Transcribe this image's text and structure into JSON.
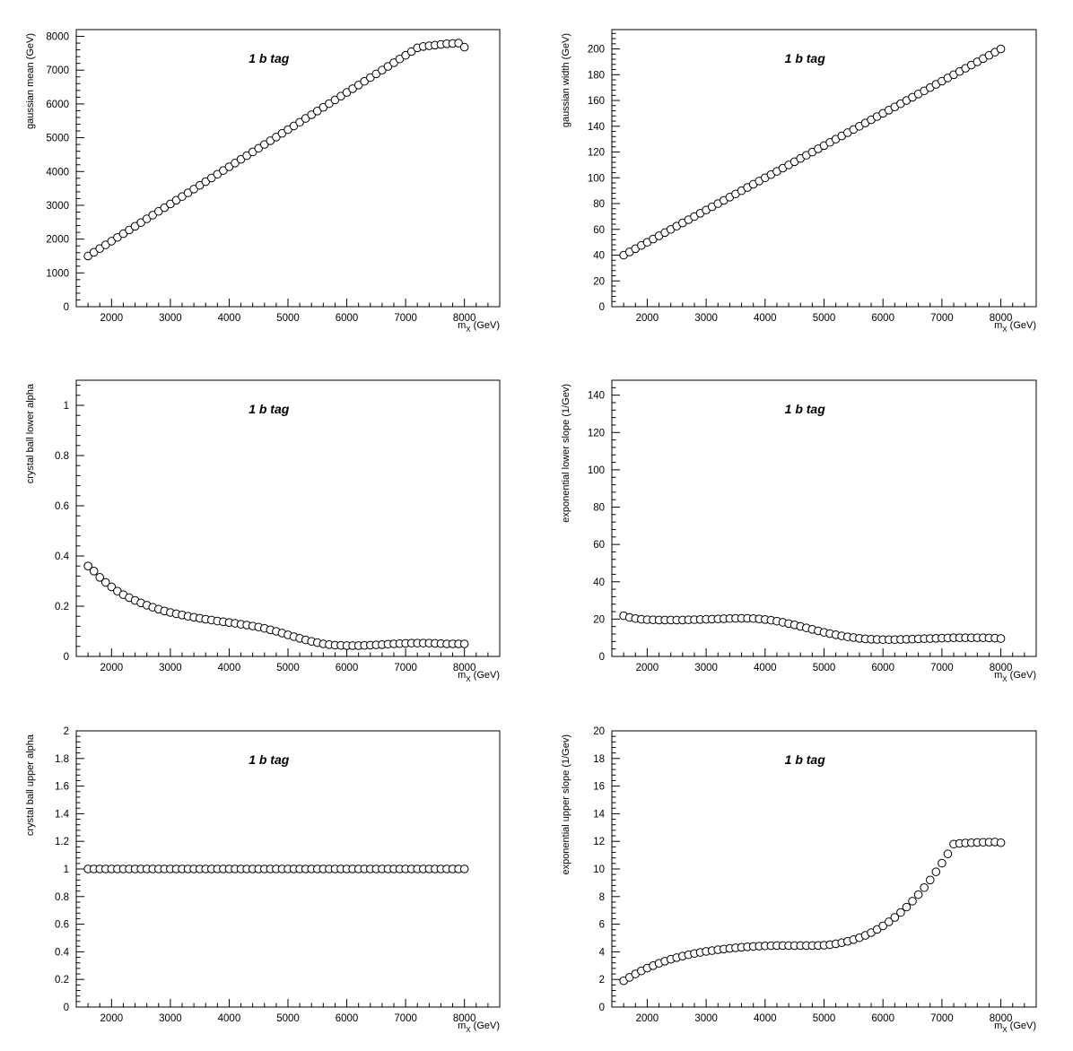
{
  "chart_data": [
    {
      "type": "scatter",
      "label": "1 b tag",
      "xlabel_main": "m",
      "xlabel_sub": "X",
      "xlabel_unit": "(GeV)",
      "ylabel": "gaussian mean (GeV)",
      "xlim": [
        1400,
        8600
      ],
      "ylim": [
        0,
        8200
      ],
      "xticks": [
        2000,
        3000,
        4000,
        5000,
        6000,
        7000,
        8000
      ],
      "yticks": [
        0,
        1000,
        2000,
        3000,
        4000,
        5000,
        6000,
        7000,
        8000
      ],
      "x_start": 1600,
      "x_step": 100,
      "y": [
        1500,
        1610,
        1720,
        1830,
        1940,
        2050,
        2160,
        2270,
        2380,
        2490,
        2600,
        2710,
        2820,
        2930,
        3040,
        3150,
        3260,
        3370,
        3480,
        3590,
        3700,
        3810,
        3920,
        4030,
        4140,
        4250,
        4360,
        4470,
        4580,
        4690,
        4800,
        4910,
        5020,
        5130,
        5240,
        5350,
        5460,
        5570,
        5680,
        5790,
        5900,
        6010,
        6120,
        6230,
        6340,
        6450,
        6560,
        6670,
        6780,
        6890,
        7000,
        7110,
        7220,
        7330,
        7440,
        7550,
        7660,
        7700,
        7720,
        7740,
        7760,
        7780,
        7790,
        7800,
        7680
      ]
    },
    {
      "type": "scatter",
      "label": "1 b tag",
      "xlabel_main": "m",
      "xlabel_sub": "X",
      "xlabel_unit": "(GeV)",
      "ylabel": "gaussian width (GeV)",
      "xlim": [
        1400,
        8600
      ],
      "ylim": [
        0,
        215
      ],
      "xticks": [
        2000,
        3000,
        4000,
        5000,
        6000,
        7000,
        8000
      ],
      "yticks": [
        0,
        20,
        40,
        60,
        80,
        100,
        120,
        140,
        160,
        180,
        200
      ],
      "x_start": 1600,
      "x_step": 100,
      "y": [
        40,
        42.5,
        45,
        47.5,
        50,
        52.5,
        55,
        57.5,
        60,
        62.5,
        65,
        67.5,
        70,
        72.5,
        75,
        77.5,
        80,
        82.5,
        85,
        87.5,
        90,
        92.5,
        95,
        97.5,
        100,
        102.5,
        105,
        107.5,
        110,
        112.5,
        115,
        117.5,
        120,
        122.5,
        125,
        127.5,
        130,
        132.5,
        135,
        137.5,
        140,
        142.5,
        145,
        147.5,
        150,
        152.5,
        155,
        157.5,
        160,
        162.5,
        165,
        167.5,
        170,
        172.5,
        175,
        177.5,
        180,
        182.5,
        185,
        187.5,
        190,
        192.5,
        195,
        197.5,
        200
      ]
    },
    {
      "type": "scatter",
      "label": "1 b tag",
      "xlabel_main": "m",
      "xlabel_sub": "X",
      "xlabel_unit": "(GeV)",
      "ylabel": "crystal ball lower alpha",
      "xlim": [
        1400,
        8600
      ],
      "ylim": [
        0,
        1.1
      ],
      "xticks": [
        2000,
        3000,
        4000,
        5000,
        6000,
        7000,
        8000
      ],
      "yticks": [
        0,
        0.2,
        0.4,
        0.6,
        0.8,
        1
      ],
      "x_start": 1600,
      "x_step": 100,
      "y": [
        0.36,
        0.34,
        0.315,
        0.295,
        0.277,
        0.26,
        0.246,
        0.234,
        0.223,
        0.213,
        0.204,
        0.196,
        0.188,
        0.181,
        0.175,
        0.17,
        0.165,
        0.16,
        0.156,
        0.152,
        0.148,
        0.145,
        0.141,
        0.138,
        0.135,
        0.132,
        0.128,
        0.125,
        0.121,
        0.117,
        0.112,
        0.106,
        0.1,
        0.093,
        0.086,
        0.079,
        0.072,
        0.066,
        0.06,
        0.055,
        0.05,
        0.047,
        0.045,
        0.044,
        0.043,
        0.043,
        0.043,
        0.044,
        0.045,
        0.046,
        0.047,
        0.049,
        0.05,
        0.051,
        0.052,
        0.053,
        0.053,
        0.053,
        0.053,
        0.052,
        0.051,
        0.05,
        0.05,
        0.05,
        0.05
      ]
    },
    {
      "type": "scatter",
      "label": "1 b tag",
      "xlabel_main": "m",
      "xlabel_sub": "X",
      "xlabel_unit": "(GeV)",
      "ylabel": "exponential lower slope (1/Gev)",
      "xlim": [
        1400,
        8600
      ],
      "ylim": [
        0,
        148
      ],
      "xticks": [
        2000,
        3000,
        4000,
        5000,
        6000,
        7000,
        8000
      ],
      "yticks": [
        0,
        20,
        40,
        60,
        80,
        100,
        120,
        140
      ],
      "x_start": 1600,
      "x_step": 100,
      "y": [
        21.8,
        20.9,
        20.3,
        19.9,
        19.7,
        19.6,
        19.5,
        19.5,
        19.5,
        19.5,
        19.5,
        19.6,
        19.7,
        19.8,
        19.9,
        20.0,
        20.1,
        20.2,
        20.3,
        20.4,
        20.4,
        20.4,
        20.3,
        20.1,
        19.8,
        19.4,
        18.9,
        18.3,
        17.6,
        16.9,
        16.1,
        15.3,
        14.5,
        13.7,
        12.9,
        12.2,
        11.6,
        11.0,
        10.5,
        10.1,
        9.7,
        9.4,
        9.2,
        9.1,
        9.0,
        9.0,
        9.0,
        9.1,
        9.2,
        9.3,
        9.4,
        9.5,
        9.6,
        9.7,
        9.8,
        9.9,
        10.0,
        10.0,
        10.0,
        10.0,
        10.0,
        10.0,
        9.9,
        9.8,
        9.6
      ]
    },
    {
      "type": "scatter",
      "label": "1 b tag",
      "xlabel_main": "m",
      "xlabel_sub": "X",
      "xlabel_unit": "(GeV)",
      "ylabel": "crystal ball upper alpha",
      "xlim": [
        1400,
        8600
      ],
      "ylim": [
        0,
        2
      ],
      "xticks": [
        2000,
        3000,
        4000,
        5000,
        6000,
        7000,
        8000
      ],
      "yticks": [
        0,
        0.2,
        0.4,
        0.6,
        0.8,
        1,
        1.2,
        1.4,
        1.6,
        1.8,
        2
      ],
      "x_start": 1600,
      "x_step": 100,
      "y": [
        1,
        1,
        1,
        1,
        1,
        1,
        1,
        1,
        1,
        1,
        1,
        1,
        1,
        1,
        1,
        1,
        1,
        1,
        1,
        1,
        1,
        1,
        1,
        1,
        1,
        1,
        1,
        1,
        1,
        1,
        1,
        1,
        1,
        1,
        1,
        1,
        1,
        1,
        1,
        1,
        1,
        1,
        1,
        1,
        1,
        1,
        1,
        1,
        1,
        1,
        1,
        1,
        1,
        1,
        1,
        1,
        1,
        1,
        1,
        1,
        1,
        1,
        1,
        1,
        1
      ]
    },
    {
      "type": "scatter",
      "label": "1 b tag",
      "xlabel_main": "m",
      "xlabel_sub": "X",
      "xlabel_unit": "(GeV)",
      "ylabel": "exponential upper slope (1/Gev)",
      "xlim": [
        1400,
        8600
      ],
      "ylim": [
        0,
        20
      ],
      "xticks": [
        2000,
        3000,
        4000,
        5000,
        6000,
        7000,
        8000
      ],
      "yticks": [
        0,
        2,
        4,
        6,
        8,
        10,
        12,
        14,
        16,
        18,
        20
      ],
      "x_start": 1600,
      "x_step": 100,
      "y": [
        1.9,
        2.15,
        2.4,
        2.62,
        2.82,
        3.0,
        3.17,
        3.32,
        3.46,
        3.58,
        3.69,
        3.79,
        3.88,
        3.96,
        4.03,
        4.09,
        4.15,
        4.2,
        4.25,
        4.29,
        4.33,
        4.36,
        4.39,
        4.41,
        4.43,
        4.44,
        4.45,
        4.45,
        4.45,
        4.45,
        4.45,
        4.45,
        4.45,
        4.46,
        4.48,
        4.52,
        4.58,
        4.66,
        4.76,
        4.88,
        5.02,
        5.19,
        5.39,
        5.62,
        5.88,
        6.17,
        6.49,
        6.85,
        7.24,
        7.67,
        8.14,
        8.65,
        9.2,
        9.79,
        10.42,
        11.09,
        11.8,
        11.85,
        11.88,
        11.9,
        11.92,
        11.93,
        11.94,
        11.95,
        11.9
      ]
    }
  ]
}
